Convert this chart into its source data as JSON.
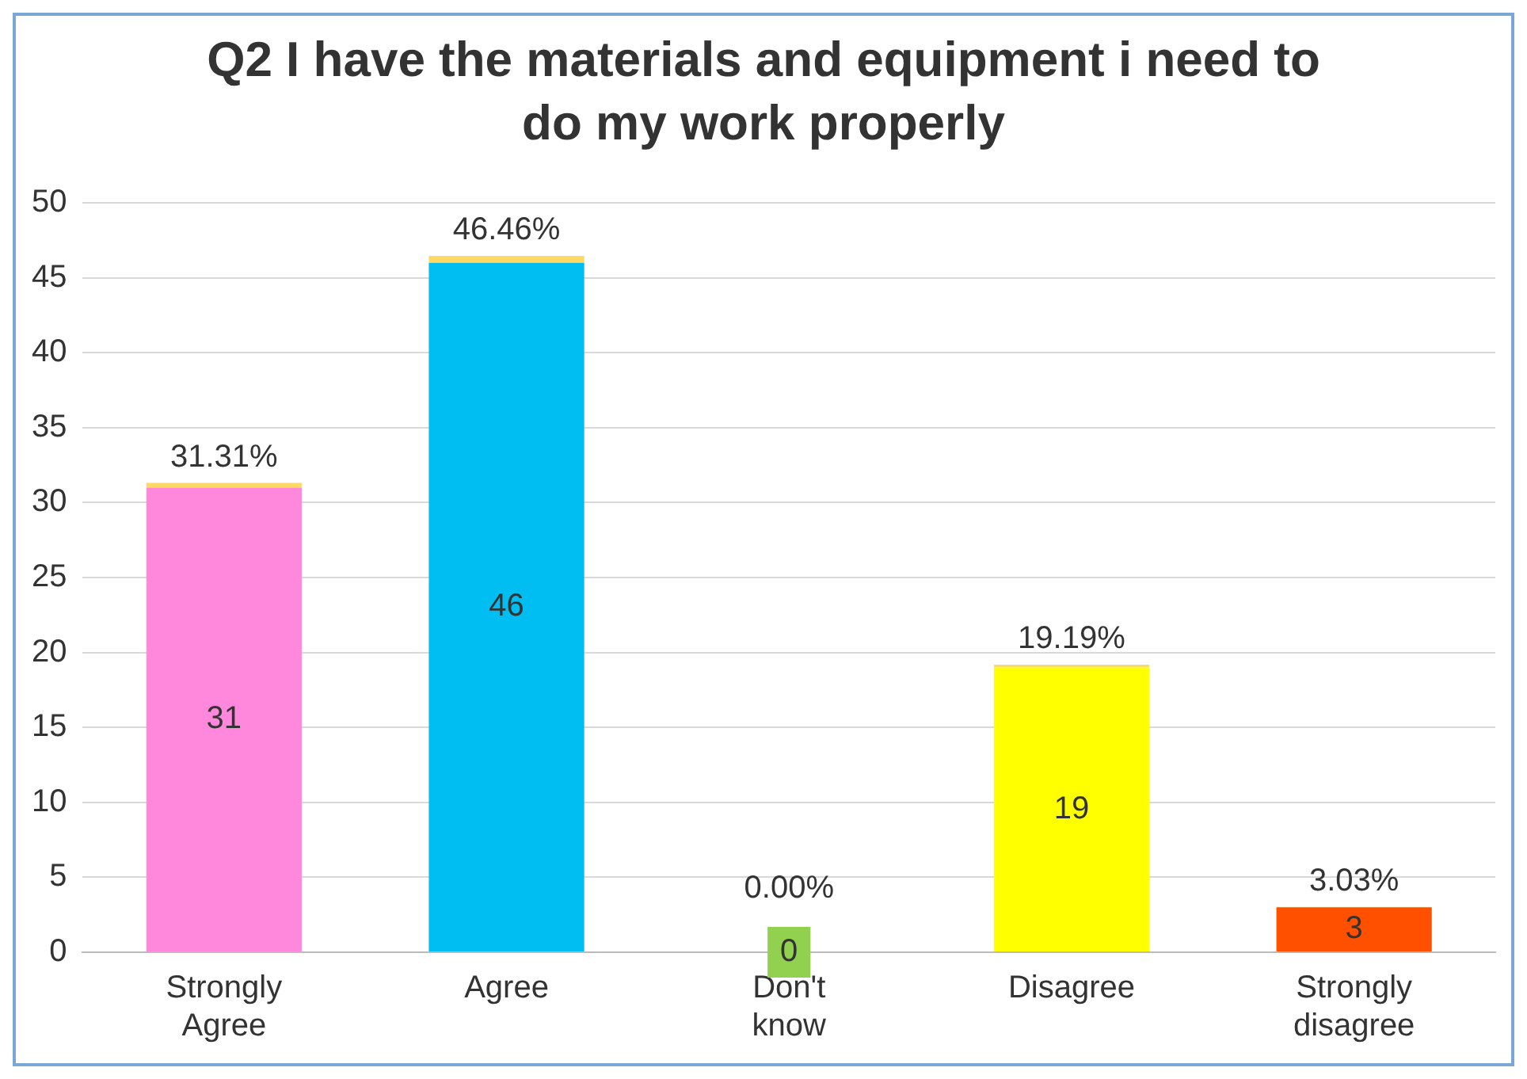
{
  "chart_data": {
    "type": "bar",
    "title": "Q2 I have the materials and equipment i need to do my work properly",
    "categories": [
      "Strongly Agree",
      "Agree",
      "Don't know",
      "Disagree",
      "Strongly disagree"
    ],
    "stacked": true,
    "series": [
      {
        "colors": [
          "#ff88dd",
          "#00bdf2",
          "#92d050",
          "#ffff00",
          "#ff5000"
        ],
        "values": [
          31,
          46,
          0,
          19,
          3
        ],
        "data_labels": true
      },
      {
        "color": "#ffd966",
        "values": [
          0.3131,
          0.4646,
          0,
          0.1919,
          0.0303
        ],
        "value_labels": [
          "31.31%",
          "46.46%",
          "0.00%",
          "19.19%",
          "3.03%"
        ]
      }
    ],
    "ylim": [
      0,
      50
    ],
    "yticks": [
      0,
      5,
      10,
      15,
      20,
      25,
      30,
      35,
      40,
      45,
      50
    ],
    "grid": "y",
    "legend": false
  }
}
